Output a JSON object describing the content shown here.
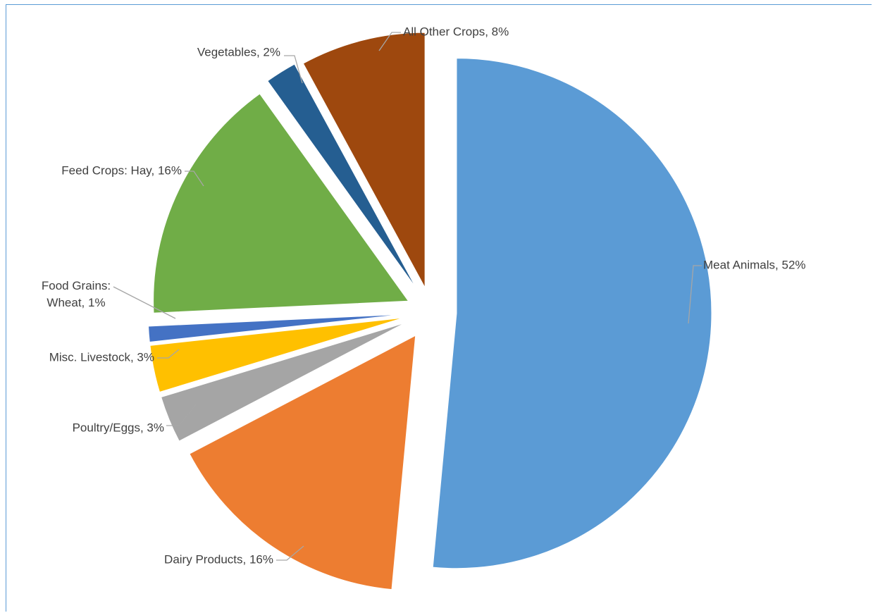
{
  "chart_data": {
    "type": "pie",
    "title": "",
    "slices": [
      {
        "label": "Meat Animals, 52%",
        "value": 52,
        "color": "#5b9bd5"
      },
      {
        "label": "Dairy Products, 16%",
        "value": 16,
        "color": "#ed7d31"
      },
      {
        "label": "Poultry/Eggs, 3%",
        "value": 3,
        "color": "#a5a5a5"
      },
      {
        "label": "Misc. Livestock, 3%",
        "value": 3,
        "color": "#ffc000"
      },
      {
        "label": "Food Grains: Wheat, 1%",
        "value": 1,
        "color": "#4472c4"
      },
      {
        "label": "Feed Crops: Hay, 16%",
        "value": 16,
        "color": "#70ad47"
      },
      {
        "label": "Vegetables, 2%",
        "value": 2,
        "color": "#255e91"
      },
      {
        "label": "All Other Crops, 8%",
        "value": 8,
        "color": "#9e480e"
      }
    ],
    "legend": "none",
    "data_labels": "outside-with-leader-lines"
  }
}
